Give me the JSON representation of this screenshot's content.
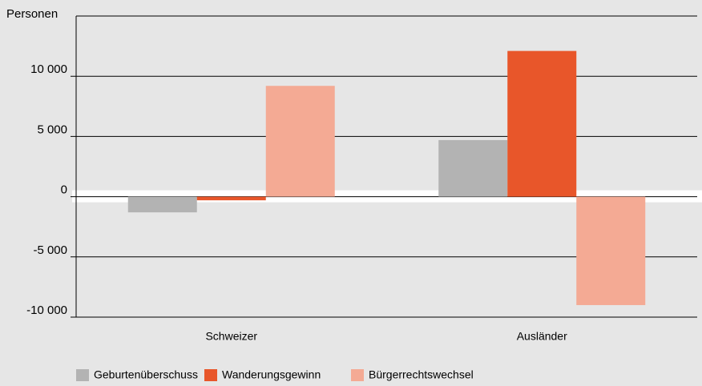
{
  "chart_data": {
    "type": "bar",
    "y_label": "Personen",
    "categories": [
      "Schweizer",
      "Ausländer"
    ],
    "series": [
      {
        "name": "Geburtenüberschuss",
        "color": "#b3b3b3",
        "values": [
          -1300,
          4700
        ]
      },
      {
        "name": "Wanderungsgewinn",
        "color": "#e8562a",
        "values": [
          -300,
          12100
        ]
      },
      {
        "name": "Bürgerrechtswechsel",
        "color": "#f4aa94",
        "values": [
          9200,
          -9000
        ]
      }
    ],
    "ylim": [
      -10000,
      15000
    ],
    "yticks": [
      {
        "value": -10000,
        "label": "-10 000"
      },
      {
        "value": -5000,
        "label": "-5 000"
      },
      0,
      {
        "value": 5000,
        "label": "5 000"
      },
      {
        "value": 10000,
        "label": "10 000"
      }
    ],
    "grid": true,
    "legend": "bottom"
  }
}
